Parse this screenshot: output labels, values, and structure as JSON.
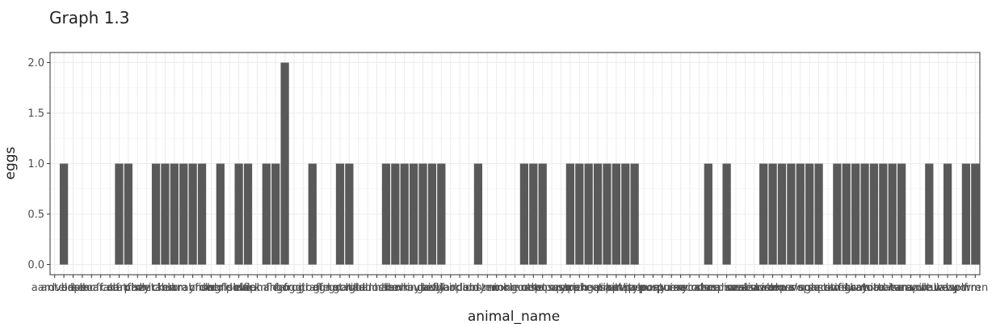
{
  "title": "Graph 1.3",
  "chart_data": {
    "type": "bar",
    "title": "Graph 1.3",
    "xlabel": "animal_name",
    "ylabel": "eggs",
    "ylim": [
      -0.1,
      2.1
    ],
    "yticks": [
      0.0,
      0.5,
      1.0,
      1.5,
      2.0
    ],
    "ytick_labels": [
      "0.0",
      "0.5",
      "1.0",
      "1.5",
      "2.0"
    ],
    "grid": true,
    "categories": [
      "aardvark",
      "antelope",
      "bass",
      "bear",
      "boar",
      "buffalo",
      "calf",
      "carp",
      "catfish",
      "cavy",
      "cheetah",
      "chicken",
      "chub",
      "clam",
      "crab",
      "crayfish",
      "crow",
      "deer",
      "dogfish",
      "dolphin",
      "dove",
      "duck",
      "elephant",
      "flamingo",
      "flea",
      "frog",
      "frog",
      "fruitbat",
      "giraffe",
      "girl",
      "gnat",
      "goat",
      "gorilla",
      "gull",
      "haddock",
      "hamster",
      "hare",
      "hawk",
      "herring",
      "honeybee",
      "housefly",
      "kiwi",
      "ladybird",
      "lark",
      "leopard",
      "lion",
      "lobster",
      "lynx",
      "mink",
      "mole",
      "mongoose",
      "moth",
      "newt",
      "octopus",
      "opossum",
      "oryx",
      "ostrich",
      "parakeet",
      "penguin",
      "pheasant",
      "pike",
      "piranha",
      "pitviper",
      "platypus",
      "polecat",
      "pony",
      "porpoise",
      "puma",
      "pussycat",
      "raccoon",
      "reindeer",
      "rhea",
      "scorpion",
      "seahorse",
      "seal",
      "sealion",
      "seasnake",
      "seawasp",
      "skimmer",
      "skua",
      "slowworm",
      "slug",
      "sole",
      "sparrow",
      "squirrel",
      "starfish",
      "stingray",
      "swan",
      "termite",
      "toad",
      "tortoise",
      "tuatara",
      "tuna",
      "vampire",
      "vole",
      "vulture",
      "wallaby",
      "wasp",
      "wolf",
      "worm",
      "wren"
    ],
    "values": [
      0,
      1,
      0,
      0,
      0,
      0,
      0,
      1,
      1,
      0,
      0,
      1,
      1,
      1,
      1,
      1,
      1,
      0,
      1,
      0,
      1,
      1,
      0,
      1,
      1,
      2,
      0,
      0,
      1,
      0,
      0,
      1,
      1,
      0,
      0,
      0,
      1,
      1,
      1,
      1,
      1,
      1,
      1,
      0,
      0,
      0,
      1,
      0,
      0,
      0,
      0,
      1,
      1,
      1,
      0,
      0,
      1,
      1,
      1,
      1,
      1,
      1,
      1,
      1,
      0,
      0,
      0,
      0,
      0,
      0,
      0,
      1,
      0,
      1,
      0,
      0,
      0,
      1,
      1,
      1,
      1,
      1,
      1,
      1,
      0,
      1,
      1,
      1,
      1,
      1,
      1,
      1,
      1,
      0,
      0,
      1,
      0,
      1,
      0,
      1,
      1
    ],
    "bar_color": "#595959"
  }
}
